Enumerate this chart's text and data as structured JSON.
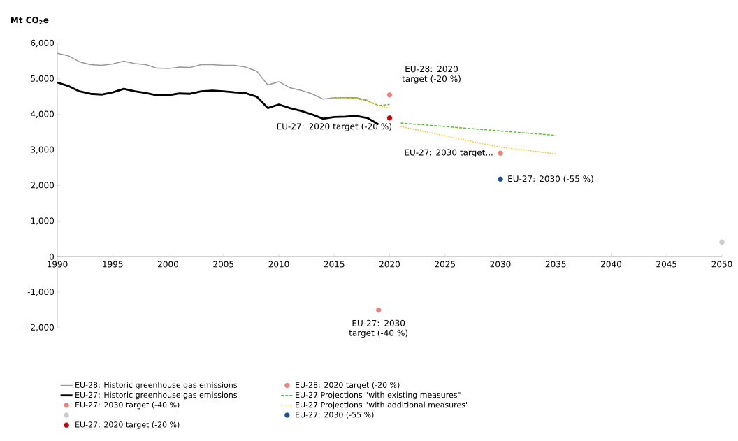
{
  "chart_data": {
    "type": "line",
    "ylabel": "Mt CO$_{2}$e",
    "xlim": [
      1990,
      2050
    ],
    "xticks": [
      1990,
      1995,
      2000,
      2005,
      2010,
      2015,
      2020,
      2025,
      2030,
      2035,
      2040,
      2045,
      2050
    ],
    "ylim": [
      -2000,
      6000
    ],
    "yticks": [
      {
        "value": -2000,
        "label": "-2,000"
      },
      {
        "value": -1000,
        "label": "-1,000"
      },
      0,
      {
        "value": 1000,
        "label": "1,000"
      },
      {
        "value": 2000,
        "label": "2,000"
      },
      {
        "value": 3000,
        "label": "3,000"
      },
      {
        "value": 4000,
        "label": "4,000"
      },
      {
        "value": 5000,
        "label": "5,000"
      },
      {
        "value": 6000,
        "label": "6,000"
      }
    ],
    "grid": false,
    "legend": "bottom",
    "series": [
      {
        "name": "EU-28: Historic greenhouse gas emissions",
        "color": "#999999",
        "line_style": "solid",
        "marker": "none",
        "x": [
          1990,
          1991,
          1992,
          1993,
          1994,
          1995,
          1996,
          1997,
          1998,
          1999,
          2000,
          2001,
          2002,
          2003,
          2004,
          2005,
          2006,
          2007,
          2008,
          2009,
          2010,
          2011,
          2012,
          2013,
          2014,
          2015,
          2016,
          2017,
          2018
        ],
        "values": [
          5720,
          5650,
          5480,
          5400,
          5380,
          5420,
          5500,
          5430,
          5400,
          5300,
          5290,
          5330,
          5320,
          5400,
          5400,
          5380,
          5380,
          5330,
          5220,
          4830,
          4920,
          4750,
          4680,
          4580,
          4430,
          4470,
          4470,
          4470,
          4400
        ]
      },
      {
        "name": "EU-28: 2020 target (-20 %)",
        "type": "scatter",
        "color": "#e8837e",
        "marker": "circle",
        "x": [
          2020
        ],
        "values": [
          4550
        ]
      },
      {
        "name": "EU-27: Historic greenhouse gas emissions",
        "color": "#000000",
        "line_style": "solid",
        "marker": "none",
        "x": [
          1990,
          1991,
          1992,
          1993,
          1994,
          1995,
          1996,
          1997,
          1998,
          1999,
          2000,
          2001,
          2002,
          2003,
          2004,
          2005,
          2006,
          2007,
          2008,
          2009,
          2010,
          2011,
          2012,
          2013,
          2014,
          2015,
          2016,
          2017,
          2018,
          2019
        ],
        "values": [
          4900,
          4800,
          4650,
          4580,
          4560,
          4620,
          4720,
          4650,
          4600,
          4540,
          4540,
          4590,
          4580,
          4650,
          4670,
          4650,
          4620,
          4600,
          4500,
          4180,
          4280,
          4180,
          4100,
          4000,
          3880,
          3930,
          3940,
          3960,
          3900,
          3720
        ]
      },
      {
        "name": "EU-27 Projections \"with existing measures\"",
        "color": "#66bb33",
        "line_style": "dashed",
        "marker": "none",
        "x": [
          2015,
          2016,
          2017,
          2018,
          2019,
          2020,
          2020.5,
          2021,
          2035
        ],
        "values": [
          4470,
          4470,
          4450,
          4380,
          4250,
          4280,
          null,
          3760,
          3410
        ]
      },
      {
        "name": "EU-27: 2030 target (-40 %)",
        "type": "scatter",
        "color": "#e8837e",
        "marker": "circle",
        "x": [
          2019,
          2030
        ],
        "values": [
          -1500,
          2910
        ]
      },
      {
        "name": "EU-27 Projections \"with additional measures\"",
        "color": "#ffc000",
        "line_style": "dotted",
        "marker": "none",
        "x": [
          2015,
          2016,
          2017,
          2018,
          2019,
          2020,
          2020.5,
          2021,
          2025,
          2028,
          2030,
          2035
        ],
        "values": [
          4470,
          4470,
          4450,
          4380,
          4250,
          4180,
          null,
          3660,
          3400,
          3200,
          3080,
          2890
        ]
      },
      {
        "type": "scatter",
        "color": "#cccccc",
        "marker": "circle",
        "x": [
          2050
        ],
        "values": [
          410
        ]
      },
      {
        "name": "EU-27: 2030 (-55 %)",
        "type": "scatter",
        "color": "#1f4e99",
        "marker": "circle",
        "x": [
          2030
        ],
        "values": [
          2180
        ]
      },
      {
        "name": "EU-27: 2020 target (-20 %)",
        "type": "scatter",
        "color": "#c00000",
        "marker": "circle",
        "x": [
          2020
        ],
        "values": [
          3900
        ]
      }
    ],
    "annotations": [
      {
        "text": "EU-28: 2020 target (-20 %)",
        "x": 2020,
        "y": 4550
      },
      {
        "text": "EU-27: 2020 target (-20 %)",
        "x": 2020,
        "y": 3900
      },
      {
        "text": "EU-27: 2030 target...",
        "x": 2030,
        "y": 2910
      },
      {
        "text": "EU-27: 2030 (-55 %)",
        "x": 2030,
        "y": 2180
      },
      {
        "text": "EU-27: 2030 target (-40 %)",
        "x": 2019,
        "y": -1500
      }
    ]
  }
}
